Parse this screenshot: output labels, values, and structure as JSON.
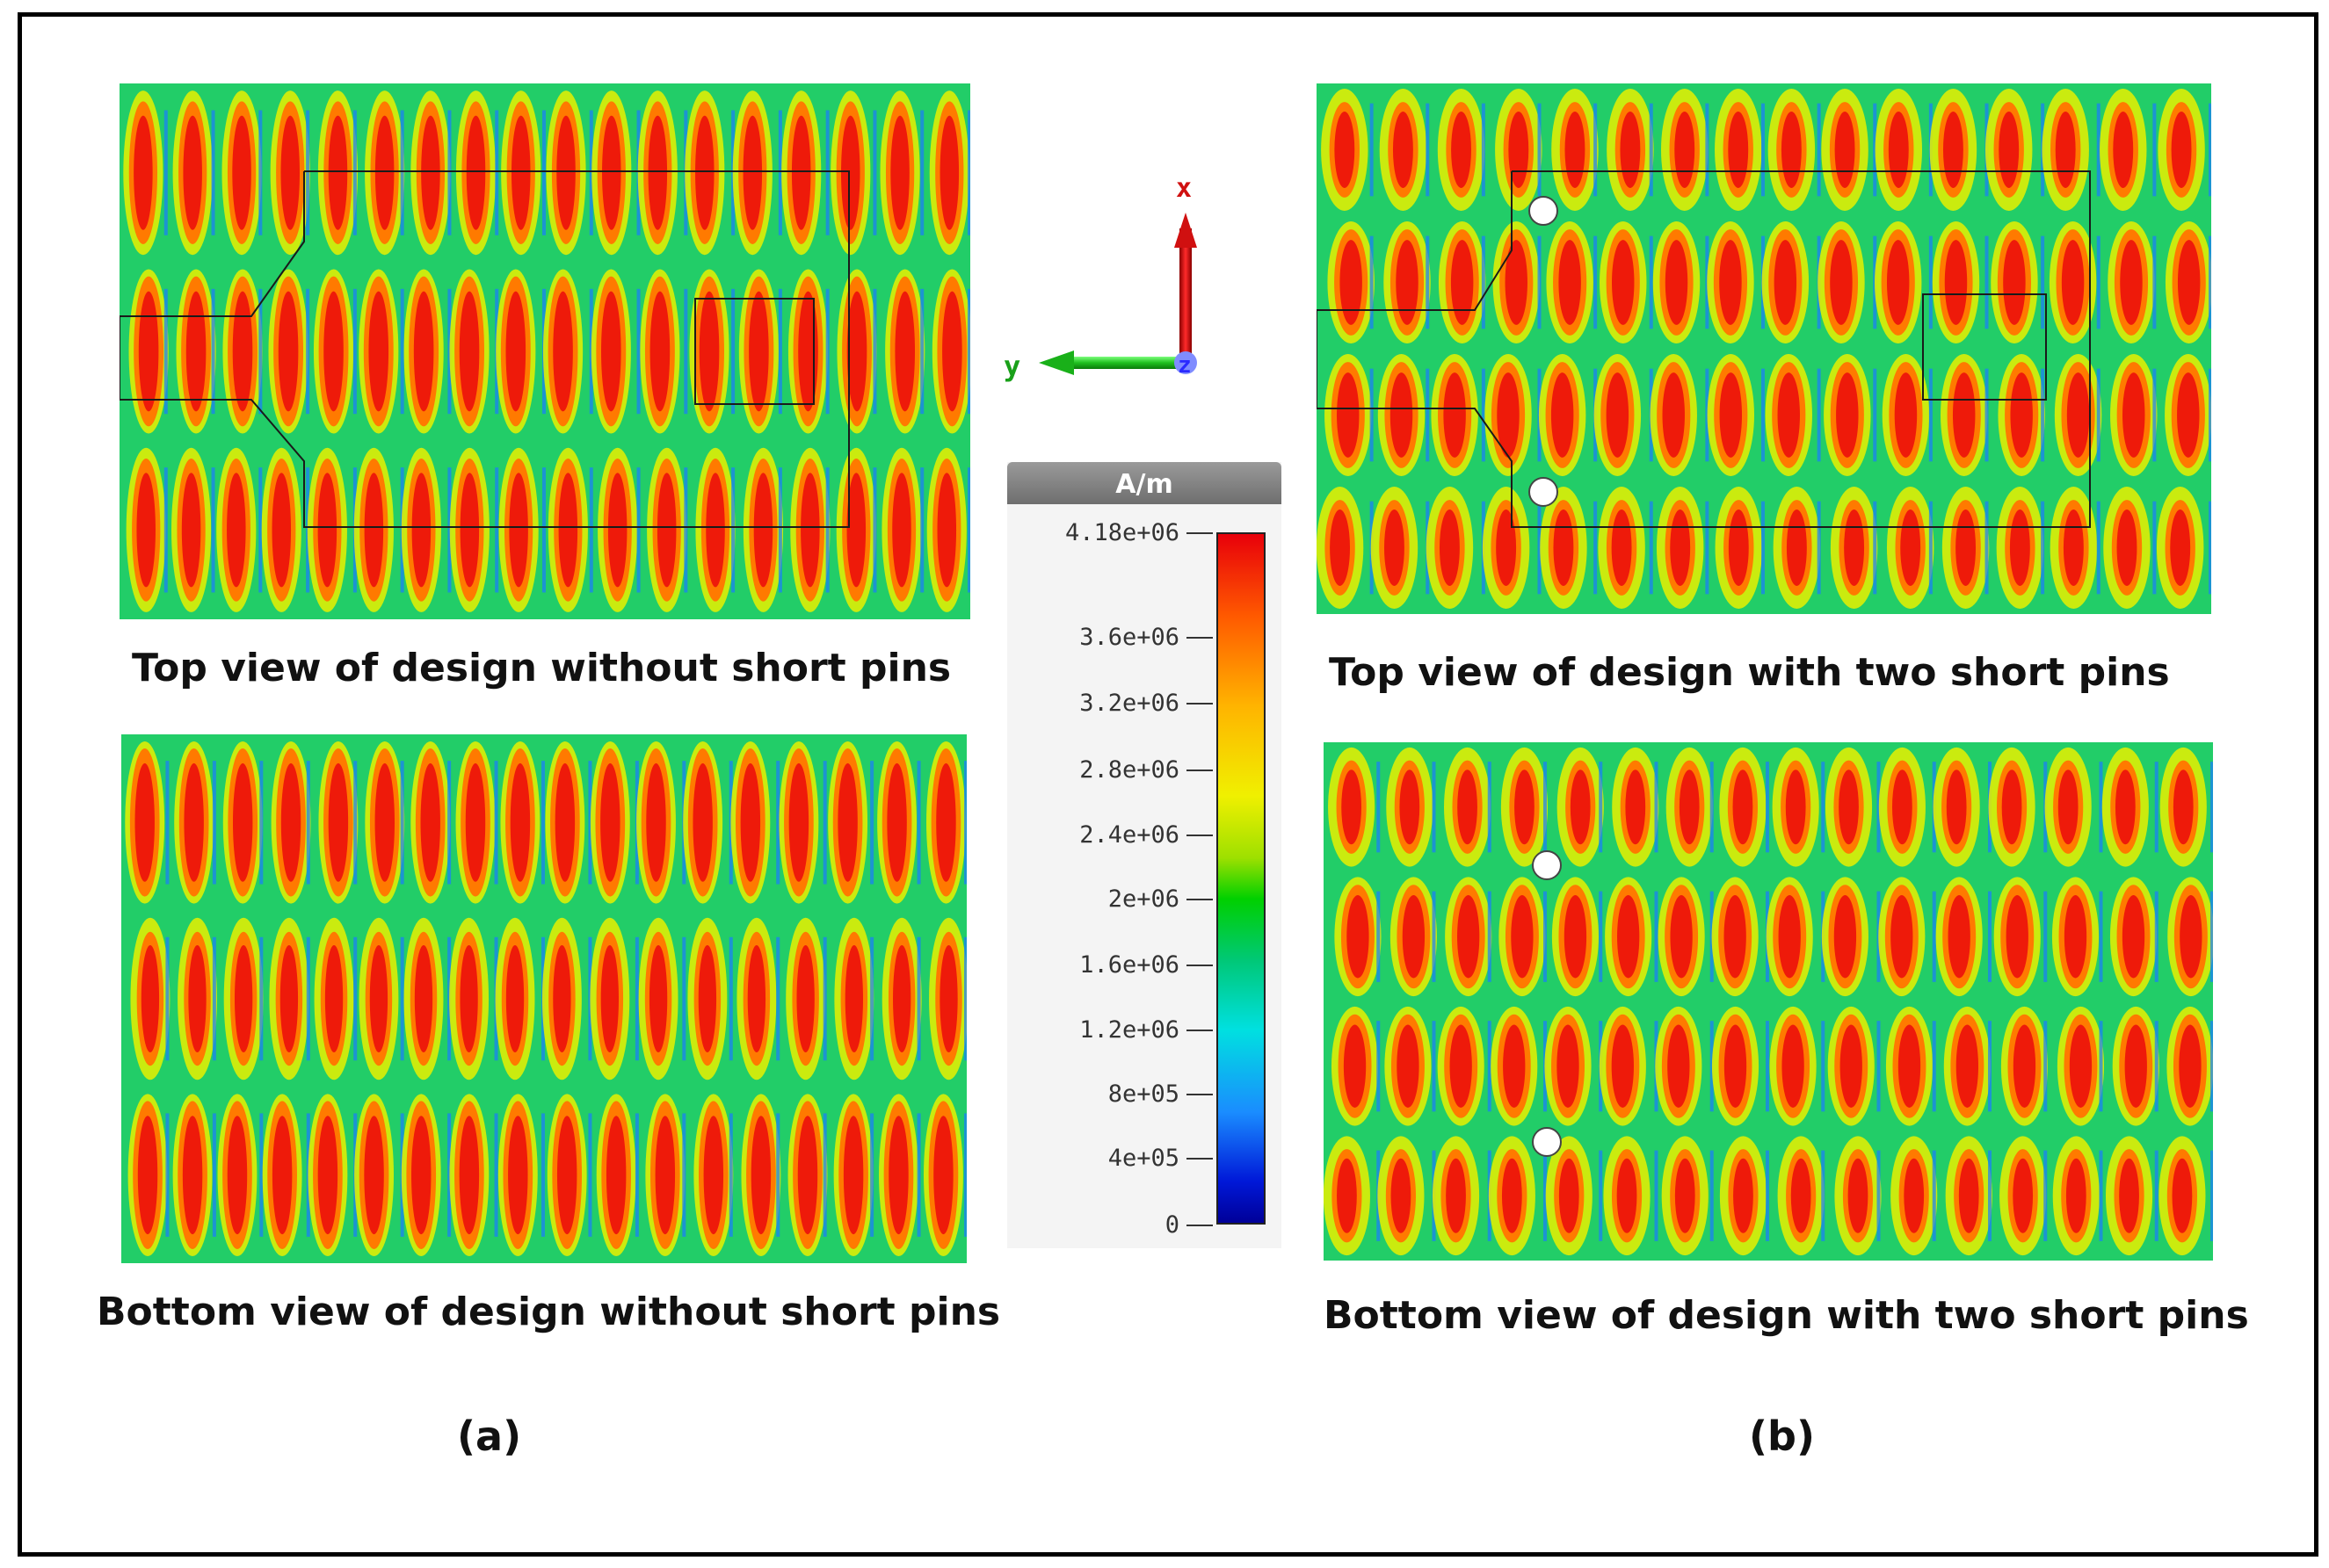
{
  "figure": {
    "panel_a_label": "(a)",
    "panel_b_label": "(b)"
  },
  "captions": {
    "a_top": "Top view of design without short pins",
    "a_bottom": "Bottom view of design without short pins",
    "b_top": "Top view of design with two short pins",
    "b_bottom": "Bottom view of design with two short pins"
  },
  "legend": {
    "unit": "A/m",
    "ticks": [
      "4.18e+06",
      "3.6e+06",
      "3.2e+06",
      "2.8e+06",
      "2.4e+06",
      "2e+06",
      "1.6e+06",
      "1.2e+06",
      "8e+05",
      "4e+05",
      "0"
    ],
    "colors": [
      "#e8000a",
      "#ffb400",
      "#f0f000",
      "#00d000",
      "#00e0e0",
      "#0018d8"
    ]
  },
  "axes": {
    "x_label": "x",
    "y_label": "y",
    "z_label": "z"
  }
}
